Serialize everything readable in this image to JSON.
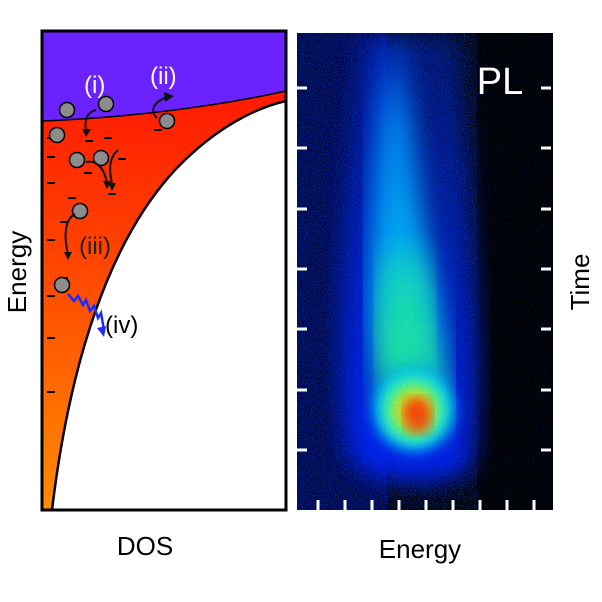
{
  "left_panel": {
    "ylabel": "Energy",
    "xlabel": "DOS",
    "processes": [
      "(i)",
      "(ii)",
      "(iii)",
      "(iv)"
    ]
  },
  "right_panel": {
    "label": "PL",
    "xlabel": "Energy",
    "ylabel": "Time",
    "colormap": [
      "#000000",
      "#0000ff",
      "#00ffff",
      "#00ff00",
      "#ffff00",
      "#ff0000"
    ]
  },
  "colors": {
    "conduction": "#6a22ff",
    "tail_top": "#ff1a00",
    "tail_bottom": "#ff8c00",
    "arrow": "#111111",
    "radiative": "#1a2cff"
  }
}
